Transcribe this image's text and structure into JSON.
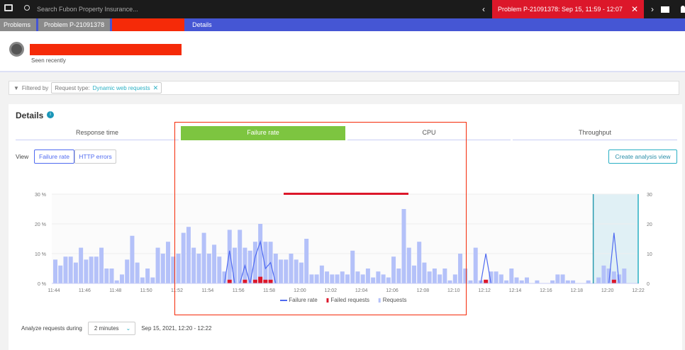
{
  "topbar": {
    "search_placeholder": "Search Fubon Property Insurance...",
    "problem_banner": "Problem P-21091378: Sep 15, 11:59 - 12:07"
  },
  "breadcrumb": [
    "Problems",
    "Problem P-21091378",
    "",
    "Details"
  ],
  "header": {
    "subtitle": "Seen recently"
  },
  "filter": {
    "label": "Filtered by",
    "key": "Request type:",
    "value": "Dynamic web requests"
  },
  "details": {
    "title": "Details",
    "tabs": [
      "Response time",
      "Failure rate",
      "CPU",
      "Throughput"
    ],
    "active_tab": "Failure rate",
    "view_label": "View",
    "view_buttons": [
      "Failure rate",
      "HTTP errors"
    ],
    "create_button": "Create analysis view"
  },
  "analyze": {
    "label": "Analyze requests during",
    "duration": "2 minutes",
    "range": "Sep 15, 2021, 12:20 - 12:22"
  },
  "colors": {
    "accent": "#4556d4",
    "active_tab": "#7dc540",
    "failed": "#dc172a",
    "requests": "#b4c1f9",
    "failure_line": "#4f6af0",
    "selection": "#e0f0f5"
  },
  "chart_data": {
    "type": "bar",
    "x_ticks": [
      "11:44",
      "11:46",
      "11:48",
      "11:50",
      "11:52",
      "11:54",
      "11:56",
      "11:58",
      "12:00",
      "12:02",
      "12:04",
      "12:06",
      "12:08",
      "12:10",
      "12:12",
      "12:14",
      "12:16",
      "12:18",
      "12:20",
      "12:22"
    ],
    "y_left_ticks": [
      "0 %",
      "10 %",
      "20 %",
      "30 %"
    ],
    "y_right_ticks": [
      "0",
      "10",
      "20",
      "30"
    ],
    "ylim": [
      0,
      30
    ],
    "interval": "20 s",
    "selection": [
      "12:20",
      "12:22"
    ],
    "legend": [
      "Failure rate",
      "Failed requests",
      "Requests"
    ],
    "series": [
      {
        "name": "Requests",
        "type": "bar",
        "values": [
          8,
          6,
          9,
          9,
          7,
          12,
          8,
          9,
          9,
          12,
          5,
          5,
          1,
          3,
          8,
          16,
          7,
          2,
          5,
          2,
          12,
          10,
          14,
          9,
          10,
          17,
          19,
          12,
          10,
          17,
          10,
          13,
          9,
          4,
          18,
          12,
          18,
          12,
          11,
          14,
          20,
          14,
          14,
          10,
          8,
          8,
          10,
          8,
          7,
          15,
          3,
          3,
          6,
          4,
          3,
          3,
          4,
          3,
          11,
          4,
          3,
          5,
          2,
          4,
          3,
          2,
          9,
          5,
          25,
          12,
          6,
          14,
          7,
          4,
          5,
          3,
          5,
          1,
          3,
          10,
          5,
          1,
          12,
          1,
          1,
          4,
          4,
          3,
          1,
          5,
          2,
          1,
          2,
          0,
          1,
          0,
          0,
          1,
          3,
          3,
          1,
          1,
          0,
          0,
          1,
          0,
          2,
          6,
          5,
          4,
          3,
          5
        ]
      },
      {
        "name": "Failed requests",
        "type": "bar",
        "values": [
          0,
          0,
          0,
          0,
          0,
          0,
          0,
          0,
          0,
          0,
          0,
          0,
          0,
          0,
          0,
          0,
          0,
          0,
          0,
          0,
          0,
          0,
          0,
          0,
          0,
          0,
          0,
          0,
          0,
          0,
          0,
          0,
          0,
          0,
          1,
          0,
          0,
          1,
          0,
          1,
          2,
          1,
          1,
          0,
          0,
          0,
          0,
          0,
          0,
          0,
          0,
          0,
          0,
          0,
          0,
          0,
          0,
          0,
          0,
          0,
          0,
          0,
          0,
          0,
          0,
          0,
          0,
          0,
          0,
          0,
          0,
          0,
          0,
          0,
          0,
          0,
          0,
          0,
          0,
          0,
          0,
          0,
          0,
          0,
          1,
          0,
          0,
          0,
          0,
          0,
          0,
          0,
          0,
          0,
          0,
          0,
          0,
          0,
          0,
          0,
          0,
          0,
          0,
          0,
          0,
          0,
          0,
          0,
          0,
          1,
          0,
          0
        ]
      },
      {
        "name": "Failure rate",
        "type": "line",
        "unit": "%",
        "values": [
          0,
          0,
          0,
          0,
          0,
          0,
          0,
          0,
          0,
          0,
          0,
          0,
          0,
          0,
          0,
          0,
          0,
          0,
          0,
          0,
          0,
          0,
          0,
          0,
          0,
          0,
          0,
          0,
          0,
          0,
          0,
          0,
          0,
          0,
          11,
          0,
          0,
          6,
          0,
          9,
          14,
          5,
          7,
          0,
          0,
          0,
          0,
          0,
          0,
          0,
          0,
          0,
          0,
          0,
          0,
          0,
          0,
          0,
          0,
          0,
          0,
          0,
          0,
          0,
          0,
          0,
          0,
          0,
          0,
          0,
          0,
          0,
          0,
          0,
          0,
          0,
          0,
          0,
          0,
          0,
          0,
          0,
          0,
          0,
          10,
          0,
          0,
          0,
          0,
          0,
          0,
          0,
          0,
          0,
          0,
          0,
          0,
          0,
          0,
          0,
          0,
          0,
          0,
          0,
          0,
          0,
          0,
          0,
          0,
          17,
          0,
          0
        ]
      }
    ]
  }
}
